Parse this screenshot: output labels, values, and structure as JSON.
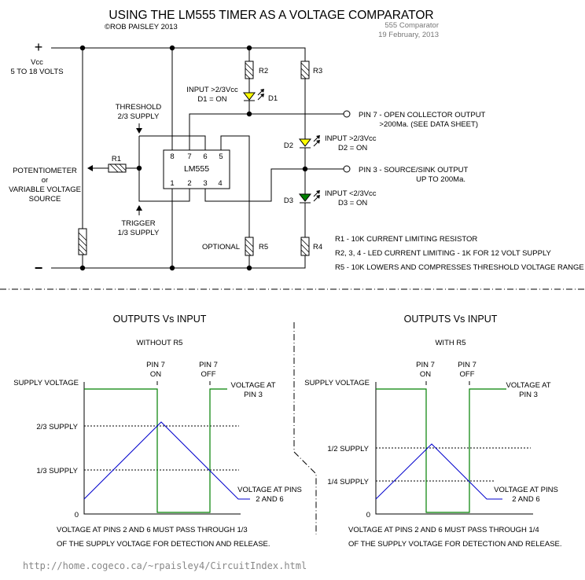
{
  "header": {
    "title": "USING THE LM555 TIMER AS A VOLTAGE COMPARATOR",
    "copyright": "©ROB PAISLEY 2013",
    "doc_name": "555 Comparator",
    "date": "19 February, 2013"
  },
  "circuit": {
    "plus": "+",
    "minus": "−",
    "vcc": "Vcc",
    "vcc_range": "5 TO 18 VOLTS",
    "pot_line1": "POTENTIOMETER",
    "pot_line2": "or",
    "pot_line3": "VARIABLE VOLTAGE",
    "pot_line4": "SOURCE",
    "r1": "R1",
    "r2": "R2",
    "r3": "R3",
    "r4": "R4",
    "r5": "R5",
    "d1": "D1",
    "d2": "D2",
    "d3": "D3",
    "chip": "LM555",
    "pins_top": [
      "8",
      "7",
      "6",
      "5"
    ],
    "pins_bottom": [
      "1",
      "2",
      "3",
      "4"
    ],
    "threshold1": "THRESHOLD",
    "threshold2": "2/3 SUPPLY",
    "trigger1": "TRIGGER",
    "trigger2": "1/3 SUPPLY",
    "optional": "OPTIONAL",
    "d1_note1": "INPUT >2/3Vcc",
    "d1_note2": "D1 = ON",
    "d2_note1": "INPUT >2/3Vcc",
    "d2_note2": "D2 = ON",
    "d3_note1": "INPUT <2/3Vcc",
    "d3_note2": "D3 = ON",
    "pin7_out1": "PIN 7 - OPEN COLLECTOR OUTPUT",
    "pin7_out2": ">200Ma.  (SEE DATA SHEET)",
    "pin3_out1": "PIN 3 - SOURCE/SINK OUTPUT",
    "pin3_out2": "UP TO 200Ma.",
    "notes": [
      "R1 - 10K CURRENT LIMITING RESISTOR",
      "R2, 3, 4 - LED CURRENT LIMITING - 1K FOR 12 VOLT SUPPLY",
      "R5 - 10K  LOWERS AND COMPRESSES THRESHOLD VOLTAGE RANGE"
    ],
    "colors": {
      "led_yellow": "#ffff00",
      "led_green": "#008000"
    }
  },
  "graphs": [
    {
      "heading": "OUTPUTS Vs INPUT",
      "subheading": "WITHOUT R5",
      "pin7_on": [
        "PIN 7",
        "ON"
      ],
      "pin7_off": [
        "PIN 7",
        "OFF"
      ],
      "supply": "SUPPLY VOLTAGE",
      "level_high": "2/3 SUPPLY",
      "level_low": "1/3 SUPPLY",
      "zero": "0",
      "pin3_label": [
        "VOLTAGE AT",
        "PIN 3"
      ],
      "pins26_label": [
        "VOLTAGE AT PINS",
        "2 AND 6"
      ],
      "caption1": "VOLTAGE AT PINS 2 AND 6 MUST PASS THROUGH 1/3",
      "caption2": "OF THE SUPPLY VOLTAGE FOR DETECTION AND RELEASE."
    },
    {
      "heading": "OUTPUTS Vs INPUT",
      "subheading": "WITH R5",
      "pin7_on": [
        "PIN 7",
        "ON"
      ],
      "pin7_off": [
        "PIN 7",
        "OFF"
      ],
      "supply": "SUPPLY VOLTAGE",
      "level_high": "1/2 SUPPLY",
      "level_low": "1/4 SUPPLY",
      "zero": "0",
      "pin3_label": [
        "VOLTAGE AT",
        "PIN 3"
      ],
      "pins26_label": [
        "VOLTAGE AT PINS",
        "2 AND 6"
      ],
      "caption1": "VOLTAGE AT PINS 2 AND 6 MUST PASS THROUGH 1/4",
      "caption2": "OF THE SUPPLY VOLTAGE FOR DETECTION AND RELEASE."
    }
  ],
  "colors": {
    "pin3_trace": "#008000",
    "pins26_trace": "#0000cc"
  },
  "footer": {
    "url": "http://home.cogeco.ca/~rpaisley4/CircuitIndex.html"
  }
}
